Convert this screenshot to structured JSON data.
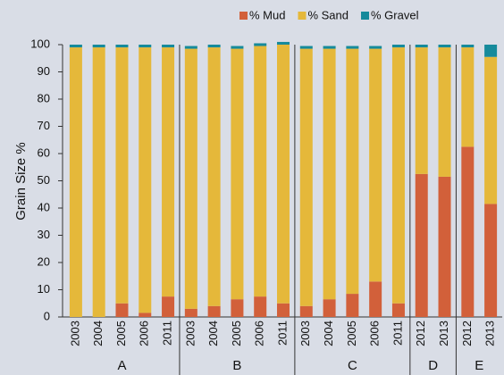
{
  "chart_data": {
    "type": "stacked-bar",
    "ylabel": "Grain Size %",
    "groups": [
      {
        "name": "A",
        "categories": [
          "2003",
          "2004",
          "2005",
          "2006",
          "2011"
        ]
      },
      {
        "name": "B",
        "categories": [
          "2003",
          "2004",
          "2005",
          "2006",
          "2011"
        ]
      },
      {
        "name": "C",
        "categories": [
          "2003",
          "2004",
          "2005",
          "2006",
          "2011"
        ]
      },
      {
        "name": "D",
        "categories": [
          "2012",
          "2013"
        ]
      },
      {
        "name": "E",
        "categories": [
          "2012",
          "2013"
        ]
      }
    ],
    "series": [
      {
        "name": "% Mud",
        "color": "#d2603a",
        "values": [
          0,
          0,
          5,
          1.5,
          7.5,
          3,
          4,
          6.5,
          7.5,
          5,
          4,
          6.5,
          8.5,
          13,
          5,
          52.5,
          51.5,
          62.5,
          41.5
        ]
      },
      {
        "name": "% Sand",
        "color": "#e5b83a",
        "values": [
          99,
          99,
          94,
          97.5,
          91.5,
          95.5,
          95,
          92,
          92,
          95,
          94.5,
          92,
          90,
          85.5,
          94,
          46.5,
          47.5,
          36.5,
          54
        ]
      },
      {
        "name": "% Gravel",
        "color": "#168a9b",
        "values": [
          1,
          1,
          1,
          1,
          1,
          1,
          1,
          1,
          1,
          1,
          1,
          1,
          1,
          1,
          1,
          1,
          1,
          1,
          4.5
        ]
      }
    ],
    "ylim": [
      0,
      100
    ],
    "yticks": [
      0,
      10,
      20,
      30,
      40,
      50,
      60,
      70,
      80,
      90,
      100
    ],
    "legend": "top"
  }
}
